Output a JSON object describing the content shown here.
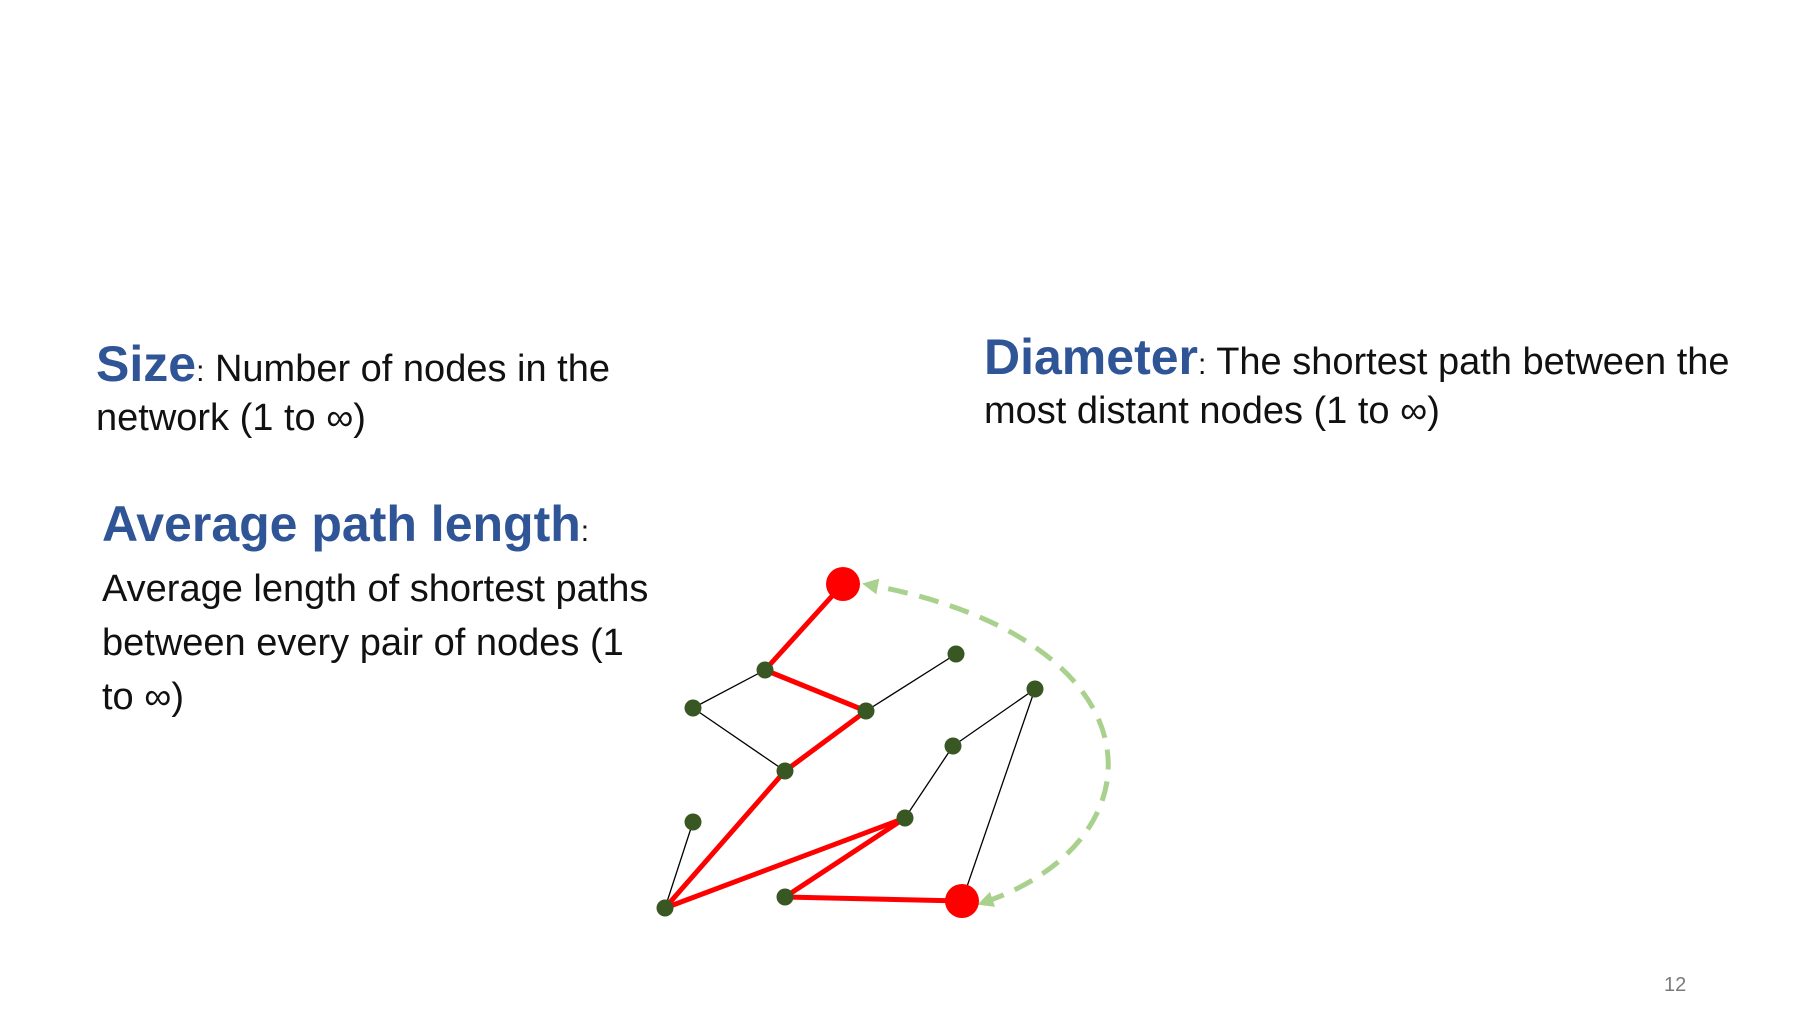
{
  "size": {
    "term": "Size",
    "colon": ":",
    "text": " Number of nodes in the network (1 to ∞)"
  },
  "diameter": {
    "term": "Diameter",
    "colon": ":",
    "text": " The shortest path between the most distant nodes (1 to ∞)"
  },
  "average_path_length": {
    "term": "Average path length",
    "colon": ":",
    "text": "Average length of shortest paths between every pair of nodes (1 to ∞)"
  },
  "page_number": "12",
  "colors": {
    "term": "#2f5597",
    "node": "#385723",
    "path": "#ff0000",
    "arc": "#a9d18e",
    "edge": "#000000"
  },
  "graph": {
    "nodes": [
      "A",
      "B",
      "C",
      "D",
      "E",
      "F",
      "G",
      "H",
      "I",
      "J",
      "K",
      "L",
      "M"
    ],
    "endpoints": [
      "A",
      "M"
    ],
    "path_edges": [
      [
        "A",
        "B"
      ],
      [
        "B",
        "D"
      ],
      [
        "D",
        "F"
      ],
      [
        "F",
        "K"
      ],
      [
        "K",
        "J"
      ],
      [
        "J",
        "L"
      ],
      [
        "L",
        "M"
      ]
    ],
    "plain_edges": [
      [
        "C",
        "B"
      ],
      [
        "C",
        "F"
      ],
      [
        "D",
        "E"
      ],
      [
        "G",
        "H"
      ],
      [
        "H",
        "J"
      ],
      [
        "G",
        "M"
      ],
      [
        "I",
        "K"
      ]
    ],
    "diameter_arc": [
      "M",
      "A"
    ]
  }
}
